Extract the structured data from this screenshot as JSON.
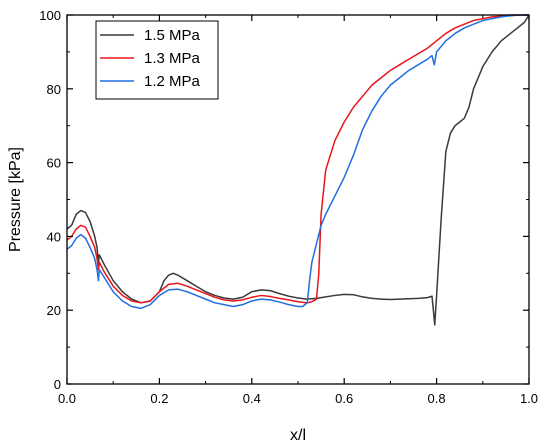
{
  "chart_data": {
    "type": "line",
    "title": "",
    "xlabel": "x/l",
    "ylabel": "Pressure [kPa]",
    "xlim": [
      0,
      1.0
    ],
    "ylim": [
      0,
      100
    ],
    "xticks": [
      "0.0",
      "0.2",
      "0.4",
      "0.6",
      "0.8",
      "1.0"
    ],
    "yticks": [
      "0",
      "20",
      "40",
      "60",
      "80",
      "100"
    ],
    "grid": false,
    "legend_position": "top-left",
    "series": [
      {
        "name": "1.5 MPa",
        "color": "#3a3a3a",
        "x": [
          0.0,
          0.01,
          0.02,
          0.03,
          0.04,
          0.05,
          0.06,
          0.065,
          0.068,
          0.07,
          0.08,
          0.1,
          0.12,
          0.14,
          0.16,
          0.18,
          0.2,
          0.21,
          0.22,
          0.23,
          0.24,
          0.26,
          0.28,
          0.3,
          0.32,
          0.34,
          0.36,
          0.38,
          0.4,
          0.42,
          0.44,
          0.46,
          0.48,
          0.5,
          0.52,
          0.54,
          0.56,
          0.58,
          0.6,
          0.62,
          0.64,
          0.66,
          0.68,
          0.7,
          0.72,
          0.74,
          0.76,
          0.78,
          0.79,
          0.793,
          0.796,
          0.8,
          0.81,
          0.82,
          0.83,
          0.84,
          0.85,
          0.86,
          0.87,
          0.88,
          0.9,
          0.92,
          0.94,
          0.96,
          0.98,
          0.99,
          1.0
        ],
        "y": [
          42,
          43,
          46,
          47,
          46.5,
          44,
          40,
          37,
          33,
          35,
          32.5,
          28,
          25,
          23,
          22,
          22.5,
          25,
          28,
          29.5,
          30,
          29.5,
          28,
          26.5,
          25,
          24,
          23.3,
          23,
          23.5,
          25,
          25.5,
          25.3,
          24.5,
          23.8,
          23.3,
          23,
          23.2,
          23.6,
          24,
          24.3,
          24.2,
          23.6,
          23.2,
          23,
          22.9,
          23,
          23.1,
          23.2,
          23.4,
          23.8,
          20,
          16,
          24,
          45,
          63,
          68,
          70,
          71,
          72,
          75,
          80,
          86,
          90,
          93,
          95,
          97,
          98,
          100
        ]
      },
      {
        "name": "1.3 MPa",
        "color": "#e8161b",
        "x": [
          0.0,
          0.01,
          0.02,
          0.03,
          0.04,
          0.05,
          0.06,
          0.065,
          0.068,
          0.07,
          0.08,
          0.1,
          0.12,
          0.14,
          0.16,
          0.18,
          0.2,
          0.22,
          0.24,
          0.26,
          0.28,
          0.3,
          0.32,
          0.34,
          0.36,
          0.38,
          0.4,
          0.42,
          0.44,
          0.46,
          0.48,
          0.5,
          0.52,
          0.53,
          0.54,
          0.545,
          0.55,
          0.56,
          0.58,
          0.6,
          0.62,
          0.64,
          0.66,
          0.68,
          0.7,
          0.72,
          0.74,
          0.76,
          0.78,
          0.79,
          0.795,
          0.8,
          0.82,
          0.84,
          0.86,
          0.88,
          0.9,
          0.92,
          0.94,
          0.96,
          0.98,
          1.0
        ],
        "y": [
          39,
          40,
          42,
          43,
          42.5,
          40,
          37,
          34,
          31,
          33,
          30.5,
          26.5,
          24,
          22.5,
          22,
          22.5,
          25,
          27,
          27.3,
          26.5,
          25.5,
          24.5,
          23.5,
          22.8,
          22.5,
          22.8,
          23.5,
          24,
          23.7,
          23.2,
          22.8,
          22.3,
          22,
          22.3,
          23,
          30,
          46,
          58,
          66,
          71,
          75,
          78,
          81,
          83,
          85,
          86.5,
          88,
          89.5,
          91,
          92,
          92.5,
          93,
          95,
          96.5,
          97.5,
          98.5,
          99,
          99.5,
          99.7,
          100,
          100,
          100
        ]
      },
      {
        "name": "1.2 MPa",
        "color": "#1f6fe0",
        "x": [
          0.0,
          0.01,
          0.02,
          0.03,
          0.04,
          0.05,
          0.06,
          0.065,
          0.068,
          0.07,
          0.08,
          0.1,
          0.12,
          0.14,
          0.16,
          0.18,
          0.2,
          0.22,
          0.24,
          0.26,
          0.28,
          0.3,
          0.32,
          0.34,
          0.36,
          0.38,
          0.4,
          0.42,
          0.44,
          0.46,
          0.48,
          0.5,
          0.51,
          0.52,
          0.525,
          0.53,
          0.54,
          0.55,
          0.56,
          0.58,
          0.6,
          0.62,
          0.64,
          0.66,
          0.68,
          0.7,
          0.72,
          0.74,
          0.76,
          0.78,
          0.79,
          0.795,
          0.8,
          0.82,
          0.84,
          0.86,
          0.88,
          0.9,
          0.92,
          0.94,
          0.96,
          0.98,
          1.0
        ],
        "y": [
          36.5,
          37.5,
          39.5,
          40.5,
          39.5,
          37,
          34,
          31,
          28,
          31,
          29,
          25,
          22.5,
          21,
          20.5,
          21.5,
          24,
          25.5,
          25.7,
          25,
          24,
          23,
          22,
          21.5,
          21,
          21.5,
          22.5,
          23,
          22.8,
          22.2,
          21.5,
          21,
          21,
          22,
          28,
          33,
          38,
          43,
          46,
          51,
          56,
          62,
          69,
          74,
          78,
          81,
          83,
          85,
          86.5,
          88,
          89,
          86.5,
          90,
          93,
          95,
          96.5,
          97.5,
          98.5,
          99,
          99.5,
          99.8,
          100,
          100
        ]
      }
    ]
  }
}
